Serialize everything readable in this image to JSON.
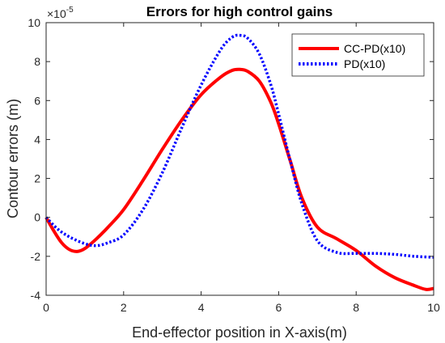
{
  "chart_data": {
    "type": "line",
    "title": "Errors for high control gains",
    "xlabel": "End-effector position in X-axis(m)",
    "ylabel": "Contour errors (m)",
    "xlim": [
      0,
      10
    ],
    "ylim": [
      -4,
      10
    ],
    "y_scale_multiplier": {
      "base": "×10",
      "exponent": "-5"
    },
    "xticks": [
      0,
      2,
      4,
      6,
      8,
      10
    ],
    "yticks": [
      -4,
      -2,
      0,
      2,
      4,
      6,
      8,
      10
    ],
    "grid": false,
    "legend_position": "top-right",
    "series": [
      {
        "name": "CC-PD(x10)",
        "color": "#ff0000",
        "style": "solid",
        "x": [
          0,
          0.2,
          0.4,
          0.6,
          0.8,
          1.0,
          1.3,
          1.6,
          2.0,
          2.5,
          3.0,
          3.5,
          4.0,
          4.5,
          4.8,
          5.0,
          5.2,
          5.5,
          5.8,
          6.0,
          6.3,
          6.6,
          7.0,
          7.5,
          8.0,
          8.5,
          9.0,
          9.5,
          9.8,
          10.0
        ],
        "y": [
          0,
          -0.7,
          -1.3,
          -1.65,
          -1.75,
          -1.6,
          -1.1,
          -0.5,
          0.4,
          1.9,
          3.5,
          5.0,
          6.3,
          7.2,
          7.55,
          7.6,
          7.5,
          7.0,
          5.9,
          4.8,
          2.9,
          1.0,
          -0.5,
          -1.1,
          -1.7,
          -2.5,
          -3.1,
          -3.5,
          -3.7,
          -3.65
        ]
      },
      {
        "name": "PD(x10)",
        "color": "#0000ff",
        "style": "dotted",
        "x": [
          0,
          0.3,
          0.6,
          1.0,
          1.3,
          1.6,
          2.0,
          2.5,
          3.0,
          3.5,
          4.0,
          4.5,
          4.8,
          5.0,
          5.2,
          5.5,
          5.8,
          6.0,
          6.3,
          6.6,
          7.0,
          7.5,
          8.0,
          8.5,
          9.0,
          9.5,
          10.0
        ],
        "y": [
          0,
          -0.6,
          -1.0,
          -1.35,
          -1.45,
          -1.3,
          -0.9,
          0.4,
          2.3,
          4.6,
          6.8,
          8.6,
          9.25,
          9.35,
          9.2,
          8.4,
          6.8,
          5.3,
          2.9,
          0.7,
          -1.2,
          -1.8,
          -1.85,
          -1.85,
          -1.9,
          -2.0,
          -2.05
        ]
      }
    ]
  }
}
